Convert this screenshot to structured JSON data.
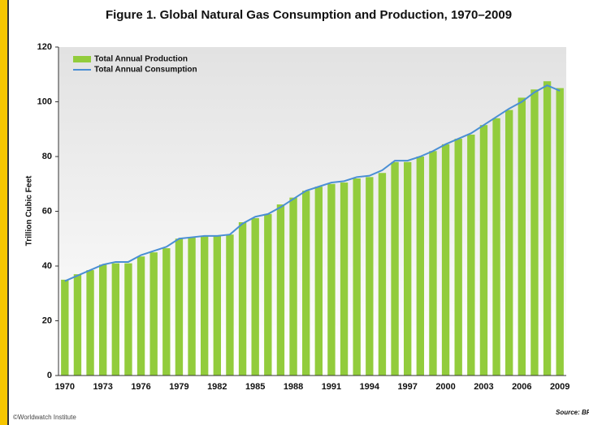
{
  "chart_data": {
    "type": "bar_line",
    "title": "Figure 1. Global Natural Gas Consumption and Production, 1970–2009",
    "y_label": "Trillion Cubic Feet",
    "credit": "©Worldwatch Institute",
    "source": "Source: BP",
    "categories": [
      "1970",
      null,
      null,
      "1973",
      null,
      null,
      "1976",
      null,
      null,
      "1979",
      null,
      null,
      "1982",
      null,
      null,
      "1985",
      null,
      null,
      "1988",
      null,
      null,
      "1991",
      null,
      null,
      "1994",
      null,
      null,
      "1997",
      null,
      null,
      "2000",
      null,
      null,
      "2003",
      null,
      null,
      "2006",
      null,
      null,
      "2009"
    ],
    "series": [
      {
        "name": "Total Annual Production",
        "type": "bar",
        "color": "#92cc3c",
        "values": [
          35,
          37,
          38.5,
          40.5,
          41,
          41,
          43.5,
          45,
          46.5,
          50,
          50.5,
          51,
          51,
          51.5,
          56,
          57.5,
          59,
          62.5,
          65,
          67.5,
          69,
          70,
          70.5,
          72,
          72.5,
          74,
          78,
          78,
          80,
          82,
          84.5,
          86.5,
          88,
          91.5,
          94,
          97,
          101.5,
          104.5,
          107.5,
          105
        ]
      },
      {
        "name": "Total Annual Consumption",
        "type": "line",
        "color": "#4a8fd4",
        "values": [
          34.5,
          36.5,
          38.5,
          40.5,
          41.5,
          41.5,
          44,
          45.5,
          47,
          50,
          50.5,
          51,
          51,
          51.5,
          55.5,
          58,
          59,
          61.5,
          64.5,
          67.5,
          69,
          70.5,
          71,
          72.5,
          73,
          75,
          78.5,
          78.5,
          80,
          82,
          84.5,
          86.5,
          88.5,
          91.5,
          94.5,
          97.5,
          100,
          103.5,
          106,
          104
        ]
      }
    ],
    "ylim": [
      0,
      120
    ],
    "yticks": [
      0,
      20,
      40,
      60,
      80,
      100,
      120
    ],
    "legend": "upper left"
  }
}
